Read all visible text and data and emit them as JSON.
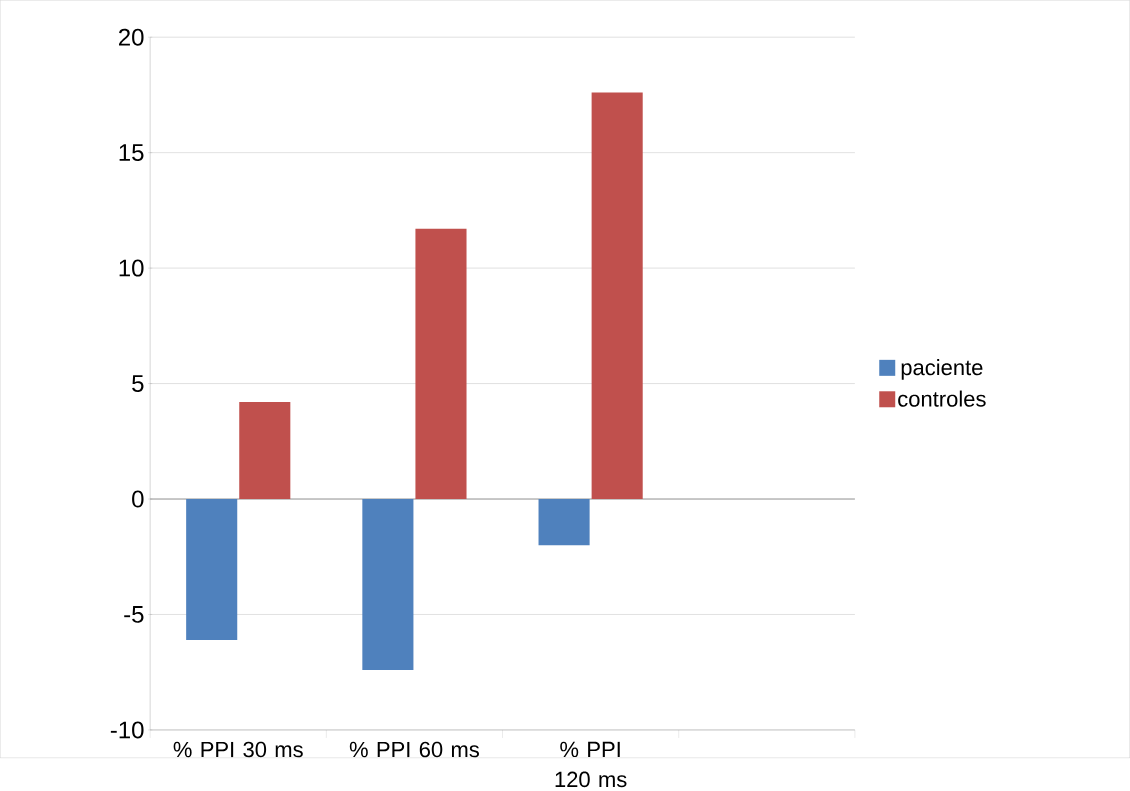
{
  "chart_data": {
    "type": "bar",
    "categories": [
      "% PPI 30 ms",
      "% PPI 60 ms",
      "% PPI 120 ms",
      null
    ],
    "series": [
      {
        "name": "paciente",
        "color": "#4f81bd",
        "values": [
          -6.1,
          -7.4,
          -2.0,
          null
        ]
      },
      {
        "name": "controles",
        "color": "#c0504d",
        "values": [
          4.2,
          11.7,
          17.6,
          null
        ]
      }
    ],
    "ylim": [
      -10,
      20
    ],
    "yticks": [
      -10,
      -5,
      0,
      5,
      10,
      15,
      20
    ],
    "grid": "y",
    "legend": "right"
  }
}
